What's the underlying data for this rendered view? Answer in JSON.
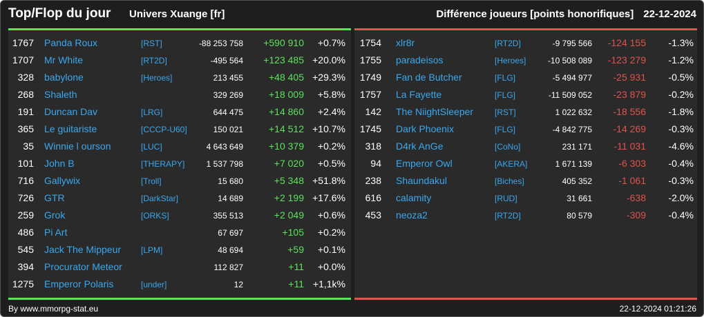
{
  "header": {
    "title": "Top/Flop du jour",
    "universe": "Univers Xuange [fr]",
    "subtitle": "Différence joueurs [points honorifiques]",
    "date": "22-12-2024"
  },
  "colors": {
    "positive": "#5be35a",
    "negative": "#e0534f",
    "link": "#3aa8ee",
    "background": "#1e1e1e"
  },
  "top": [
    {
      "rank": "1767",
      "name": "Panda Roux",
      "ally": "[RST]",
      "points": "-88 253 758",
      "diff": "+590 910",
      "pct": "+0.7%"
    },
    {
      "rank": "1707",
      "name": "Mr White",
      "ally": "[RT2D]",
      "points": "-495 564",
      "diff": "+123 485",
      "pct": "+20.0%"
    },
    {
      "rank": "328",
      "name": "babylone",
      "ally": "[Heroes]",
      "points": "213 455",
      "diff": "+48 405",
      "pct": "+29.3%"
    },
    {
      "rank": "268",
      "name": "Shaleth",
      "ally": "",
      "points": "329 269",
      "diff": "+18 009",
      "pct": "+5.8%"
    },
    {
      "rank": "191",
      "name": "Duncan Dav",
      "ally": "[LRG]",
      "points": "644 475",
      "diff": "+14 860",
      "pct": "+2.4%"
    },
    {
      "rank": "365",
      "name": "Le guitariste",
      "ally": "[CCCP-U60]",
      "points": "150 021",
      "diff": "+14 512",
      "pct": "+10.7%"
    },
    {
      "rank": "35",
      "name": "Winnie l ourson",
      "ally": "[LUC]",
      "points": "4 643 649",
      "diff": "+10 379",
      "pct": "+0.2%"
    },
    {
      "rank": "101",
      "name": "John B",
      "ally": "[THERAPY]",
      "points": "1 537 798",
      "diff": "+7 020",
      "pct": "+0.5%"
    },
    {
      "rank": "716",
      "name": "Gallywix",
      "ally": "[Troll]",
      "points": "15 680",
      "diff": "+5 348",
      "pct": "+51.8%"
    },
    {
      "rank": "726",
      "name": "GTR",
      "ally": "[DarkStar]",
      "points": "14 689",
      "diff": "+2 199",
      "pct": "+17.6%"
    },
    {
      "rank": "259",
      "name": "Grok",
      "ally": "[ORKS]",
      "points": "355 513",
      "diff": "+2 049",
      "pct": "+0.6%"
    },
    {
      "rank": "486",
      "name": "Pi Art",
      "ally": "",
      "points": "67 697",
      "diff": "+105",
      "pct": "+0.2%"
    },
    {
      "rank": "545",
      "name": "Jack The Mippeur",
      "ally": "[LPM]",
      "points": "48 694",
      "diff": "+59",
      "pct": "+0.1%"
    },
    {
      "rank": "394",
      "name": "Procurator Meteor",
      "ally": "",
      "points": "112 827",
      "diff": "+11",
      "pct": "+0.0%"
    },
    {
      "rank": "1275",
      "name": "Emperor Polaris",
      "ally": "[under]",
      "points": "12",
      "diff": "+11",
      "pct": "+1,1k%"
    }
  ],
  "flop": [
    {
      "rank": "1754",
      "name": "xlr8r",
      "ally": "[RT2D]",
      "points": "-9 795 566",
      "diff": "-124 155",
      "pct": "-1.3%"
    },
    {
      "rank": "1755",
      "name": "paradeisos",
      "ally": "[Heroes]",
      "points": "-10 508 089",
      "diff": "-123 279",
      "pct": "-1.2%"
    },
    {
      "rank": "1749",
      "name": "Fan de Butcher",
      "ally": "[FLG]",
      "points": "-5 494 977",
      "diff": "-25 931",
      "pct": "-0.5%"
    },
    {
      "rank": "1757",
      "name": "La Fayette",
      "ally": "[FLG]",
      "points": "-11 509 052",
      "diff": "-23 879",
      "pct": "-0.2%"
    },
    {
      "rank": "142",
      "name": "The NiightSleeper",
      "ally": "[RST]",
      "points": "1 022 632",
      "diff": "-18 556",
      "pct": "-1.8%"
    },
    {
      "rank": "1745",
      "name": "Dark Phoenix",
      "ally": "[FLG]",
      "points": "-4 842 775",
      "diff": "-14 269",
      "pct": "-0.3%"
    },
    {
      "rank": "318",
      "name": "D4rk AnGe",
      "ally": "[CoNo]",
      "points": "231 171",
      "diff": "-11 031",
      "pct": "-4.6%"
    },
    {
      "rank": "94",
      "name": "Emperor Owl",
      "ally": "[AKERA]",
      "points": "1 671 139",
      "diff": "-6 303",
      "pct": "-0.4%"
    },
    {
      "rank": "238",
      "name": "Shaundakul",
      "ally": "[Biches]",
      "points": "405 352",
      "diff": "-1 061",
      "pct": "-0.3%"
    },
    {
      "rank": "616",
      "name": "calamity",
      "ally": "[RUD]",
      "points": "31 661",
      "diff": "-638",
      "pct": "-2.0%"
    },
    {
      "rank": "453",
      "name": "neoza2",
      "ally": "[RT2D]",
      "points": "80 579",
      "diff": "-309",
      "pct": "-0.4%"
    }
  ],
  "footer": {
    "credit": "By www.mmorpg-stat.eu",
    "timestamp": "22-12-2024 01:21:26"
  }
}
